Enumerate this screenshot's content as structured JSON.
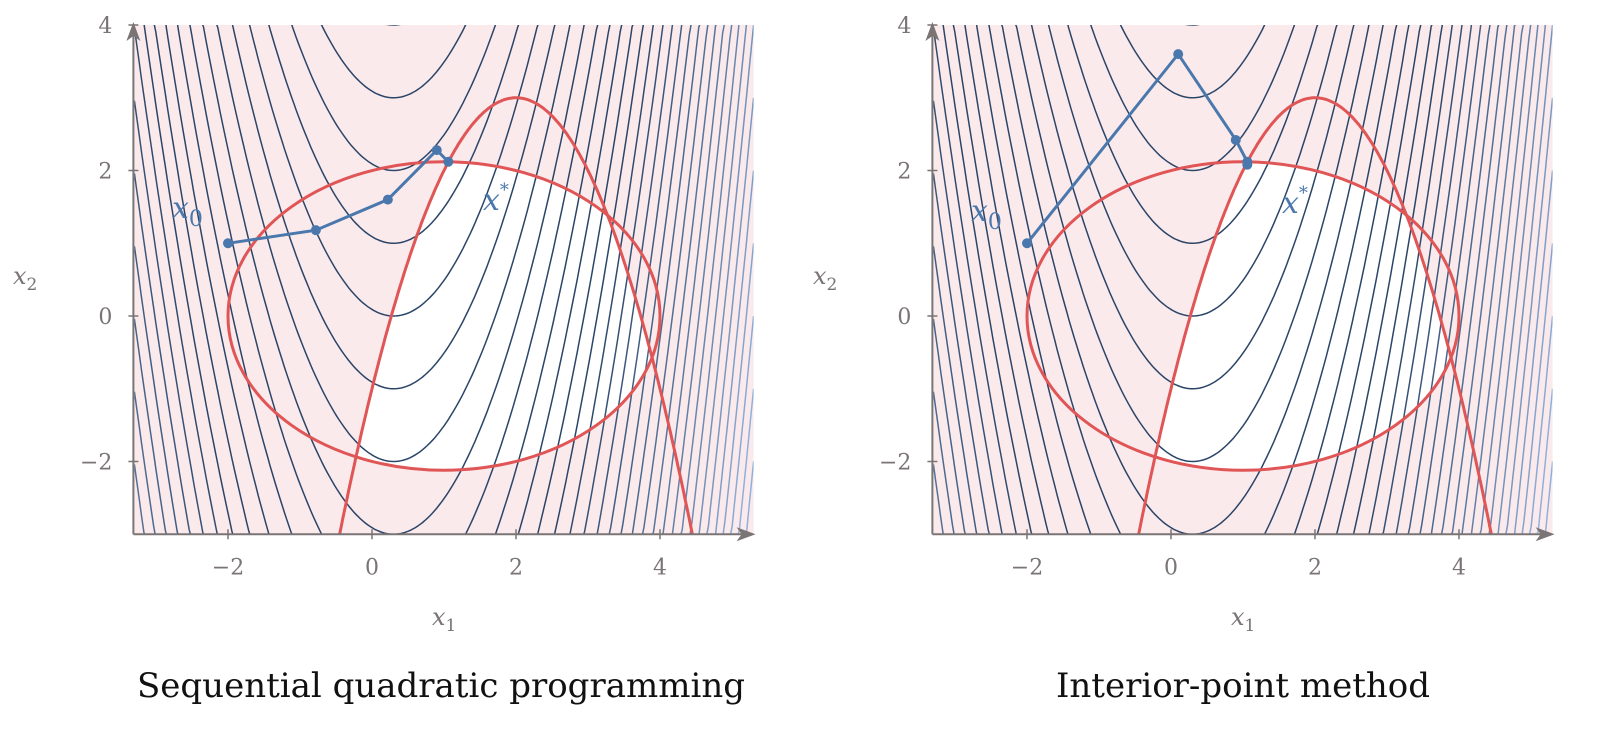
{
  "colors": {
    "infeasible_fill": "#fbeaec",
    "feasible_fill": "#ffffff",
    "contour_near": "#2b4568",
    "contour_far": "#8fb0dc",
    "constraint": "#e05555",
    "path": "#4a78ad",
    "axis": "#7a7474"
  },
  "chart_data": [
    {
      "type": "contour",
      "title": "Sequential quadratic programming",
      "xlabel": {
        "var": "x",
        "sub": "1"
      },
      "ylabel": {
        "var": "x",
        "sub": "2"
      },
      "xlim": [
        -3.3,
        5.3
      ],
      "ylim": [
        -3,
        4
      ],
      "xticks": [
        "−2",
        "0",
        "2",
        "4"
      ],
      "xtick_values": [
        -2,
        0,
        2,
        4
      ],
      "yticks": [
        "−2",
        "0",
        "2",
        "4"
      ],
      "ytick_values": [
        -2,
        0,
        2,
        4
      ],
      "contour_levels": [
        -30,
        -29,
        -28,
        -27,
        -26,
        -25,
        -24,
        -23,
        -22,
        -21,
        -20,
        -19,
        -18,
        -17,
        -16,
        -15,
        -14,
        -13,
        -12,
        -11,
        -10,
        -9,
        -8,
        -7,
        -6,
        -5,
        -4,
        -3,
        -2,
        -1,
        0,
        1,
        2,
        3,
        4
      ],
      "constraints": [
        {
          "type": "ellipse",
          "center": [
            1,
            0
          ],
          "radii": [
            3,
            2.12
          ]
        },
        {
          "type": "parabola",
          "vertex": [
            2,
            3
          ],
          "a": -1
        }
      ],
      "iterates": [
        [
          -2,
          1
        ],
        [
          -0.78,
          1.18
        ],
        [
          0.22,
          1.6
        ],
        [
          0.9,
          2.28
        ],
        [
          1.06,
          2.12
        ]
      ],
      "start_label": {
        "var": "x",
        "sub": "0"
      },
      "optimum_label": {
        "var": "x",
        "sup": "*"
      }
    },
    {
      "type": "contour",
      "title": "Interior-point method",
      "xlabel": {
        "var": "x",
        "sub": "1"
      },
      "ylabel": {
        "var": "x",
        "sub": "2"
      },
      "xlim": [
        -3.3,
        5.3
      ],
      "ylim": [
        -3,
        4
      ],
      "xticks": [
        "−2",
        "0",
        "2",
        "4"
      ],
      "xtick_values": [
        -2,
        0,
        2,
        4
      ],
      "yticks": [
        "−2",
        "0",
        "2",
        "4"
      ],
      "ytick_values": [
        -2,
        0,
        2,
        4
      ],
      "contour_levels": [
        -30,
        -29,
        -28,
        -27,
        -26,
        -25,
        -24,
        -23,
        -22,
        -21,
        -20,
        -19,
        -18,
        -17,
        -16,
        -15,
        -14,
        -13,
        -12,
        -11,
        -10,
        -9,
        -8,
        -7,
        -6,
        -5,
        -4,
        -3,
        -2,
        -1,
        0,
        1,
        2,
        3,
        4
      ],
      "constraints": [
        {
          "type": "ellipse",
          "center": [
            1,
            0
          ],
          "radii": [
            3,
            2.12
          ]
        },
        {
          "type": "parabola",
          "vertex": [
            2,
            3
          ],
          "a": -1
        }
      ],
      "iterates": [
        [
          -2,
          1
        ],
        [
          0.1,
          3.6
        ],
        [
          0.9,
          2.42
        ],
        [
          1.06,
          2.12
        ],
        [
          1.06,
          2.08
        ]
      ],
      "start_label": {
        "var": "x",
        "sub": "0"
      },
      "optimum_label": {
        "var": "x",
        "sup": "*"
      }
    }
  ]
}
